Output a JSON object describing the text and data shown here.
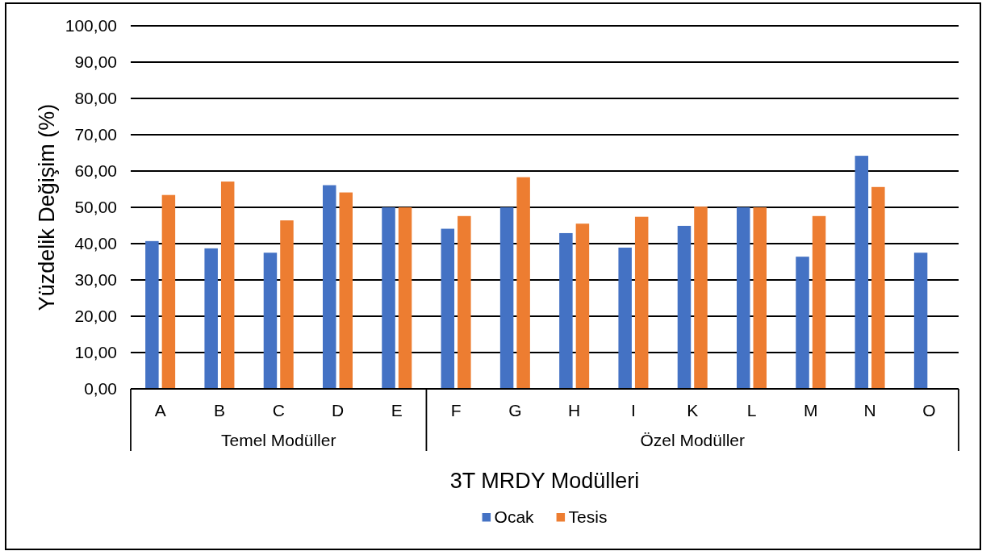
{
  "chart_data": {
    "type": "bar",
    "categories": [
      "A",
      "B",
      "C",
      "D",
      "E",
      "F",
      "G",
      "H",
      "I",
      "K",
      "L",
      "M",
      "N",
      "O"
    ],
    "series": [
      {
        "name": "Ocak",
        "color": "#4472c4",
        "values": [
          40.7,
          38.7,
          37.5,
          56.1,
          50.0,
          44.1,
          50.0,
          42.9,
          38.9,
          44.9,
          50.0,
          36.4,
          64.2,
          37.5
        ]
      },
      {
        "name": "Tesis",
        "color": "#ed7d31",
        "values": [
          53.4,
          57.1,
          46.4,
          54.1,
          50.0,
          47.6,
          58.3,
          45.5,
          47.4,
          50.2,
          50.0,
          47.6,
          55.6,
          null
        ]
      }
    ],
    "xlabel": "3T MRDY Modülleri",
    "ylabel": "Yüzdelik Değişim (%)",
    "ylim": [
      0,
      100
    ],
    "yticks": [
      {
        "value": 0,
        "label": "0,00"
      },
      {
        "value": 10,
        "label": "10,00"
      },
      {
        "value": 20,
        "label": "20,00"
      },
      {
        "value": 30,
        "label": "30,00"
      },
      {
        "value": 40,
        "label": "40,00"
      },
      {
        "value": 50,
        "label": "50,00"
      },
      {
        "value": 60,
        "label": "60,00"
      },
      {
        "value": 70,
        "label": "70,00"
      },
      {
        "value": 80,
        "label": "80,00"
      },
      {
        "value": 90,
        "label": "90,00"
      },
      {
        "value": 100,
        "label": "100,00"
      }
    ],
    "grid": "y",
    "legend": "bottom",
    "annotations": [
      "Temel Modüller",
      "Özel Modüller"
    ]
  }
}
